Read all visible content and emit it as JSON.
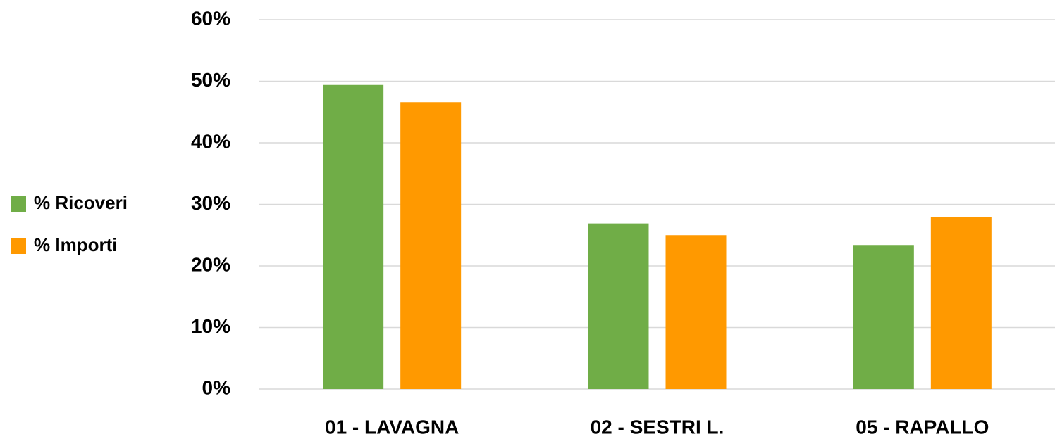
{
  "chart_data": {
    "type": "bar",
    "categories": [
      "01 - LAVAGNA",
      "02 - SESTRI L.",
      "05 - RAPALLO"
    ],
    "series": [
      {
        "name": "% Ricoveri",
        "color": "#70ad47",
        "values": [
          49.4,
          26.9,
          23.4
        ]
      },
      {
        "name": "% Importi",
        "color": "#ff9900",
        "values": [
          46.6,
          25.0,
          28.0
        ]
      }
    ],
    "ylim": [
      0,
      60
    ],
    "yticks": [
      {
        "value": 0,
        "label": "0%"
      },
      {
        "value": 10,
        "label": "10%"
      },
      {
        "value": 20,
        "label": "20%"
      },
      {
        "value": 30,
        "label": "30%"
      },
      {
        "value": 40,
        "label": "40%"
      },
      {
        "value": 50,
        "label": "50%"
      },
      {
        "value": 60,
        "label": "60%"
      }
    ],
    "grid": true,
    "legend": "left"
  }
}
